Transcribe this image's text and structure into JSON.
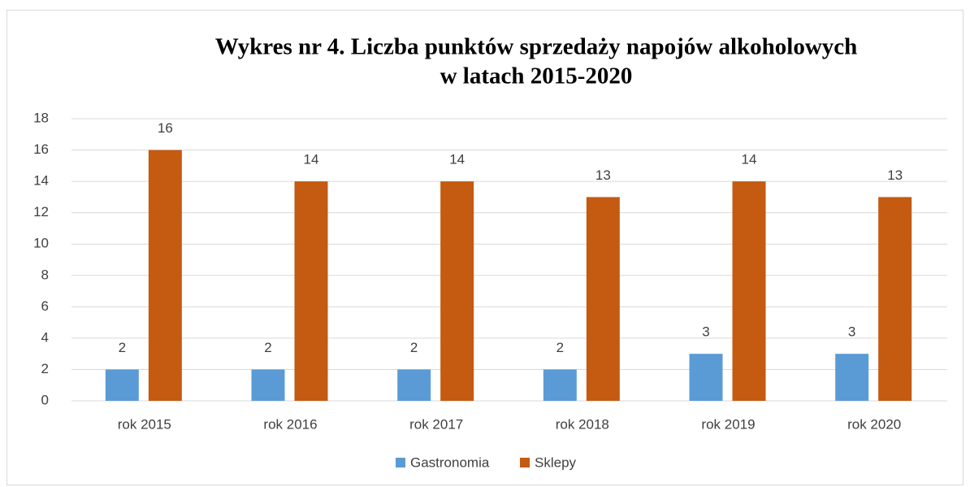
{
  "chart_data": {
    "type": "bar",
    "title": [
      "Wykres nr 4. Liczba punktów sprzedaży napojów alkoholowych",
      "w latach 2015-2020"
    ],
    "categories": [
      "rok 2015",
      "rok 2016",
      "rok 2017",
      "rok 2018",
      "rok 2019",
      "rok 2020"
    ],
    "series": [
      {
        "name": "Gastronomia",
        "color": "#5b9bd5",
        "values": [
          2,
          2,
          2,
          2,
          3,
          3
        ]
      },
      {
        "name": "Sklepy",
        "color": "#c55a11",
        "values": [
          16,
          14,
          14,
          13,
          14,
          13
        ]
      }
    ],
    "ylim": [
      0,
      18
    ],
    "yticks": [
      0,
      2,
      4,
      6,
      8,
      10,
      12,
      14,
      16,
      18
    ],
    "grid": true,
    "legend": "bottom"
  }
}
